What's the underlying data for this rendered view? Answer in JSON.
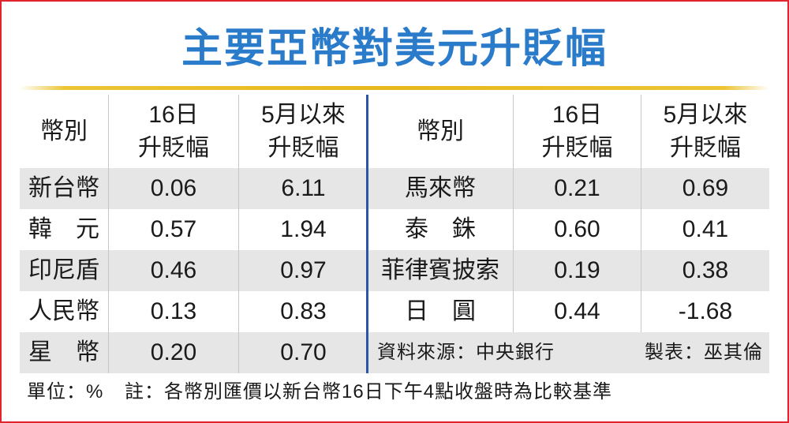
{
  "colors": {
    "title": "#2b7bcb",
    "divider": "#2a56a6",
    "rule": "#e6b81c",
    "row_shade": "#e6e6e6",
    "frame": "#e0262c"
  },
  "chart_data": {
    "type": "table",
    "title": "主要亞幣對美元升貶幅",
    "columns": [
      {
        "lines": [
          "幣別"
        ]
      },
      {
        "lines": [
          "16日",
          "升貶幅"
        ]
      },
      {
        "lines": [
          "5月以來",
          "升貶幅"
        ]
      }
    ],
    "rows": [
      {
        "currency": "新台幣",
        "day16": "0.06",
        "since_may": "6.11"
      },
      {
        "currency": "韓　元",
        "day16": "0.57",
        "since_may": "1.94"
      },
      {
        "currency": "印尼盾",
        "day16": "0.46",
        "since_may": "0.97"
      },
      {
        "currency": "人民幣",
        "day16": "0.13",
        "since_may": "0.83"
      },
      {
        "currency": "星　幣",
        "day16": "0.20",
        "since_may": "0.70"
      },
      {
        "currency": "馬來幣",
        "day16": "0.21",
        "since_may": "0.69"
      },
      {
        "currency": "泰　銖",
        "day16": "0.60",
        "since_may": "0.41"
      },
      {
        "currency": "菲律賓披索",
        "day16": "0.19",
        "since_may": "0.38"
      },
      {
        "currency": "日　圓",
        "day16": "0.44",
        "since_may": "-1.68"
      }
    ],
    "source": "資料來源：中央銀行",
    "credit": "製表：巫其倫",
    "unit": "單位：%",
    "note": "註：各幣別匯價以新台幣16日下午4點收盤時為比較基準"
  }
}
